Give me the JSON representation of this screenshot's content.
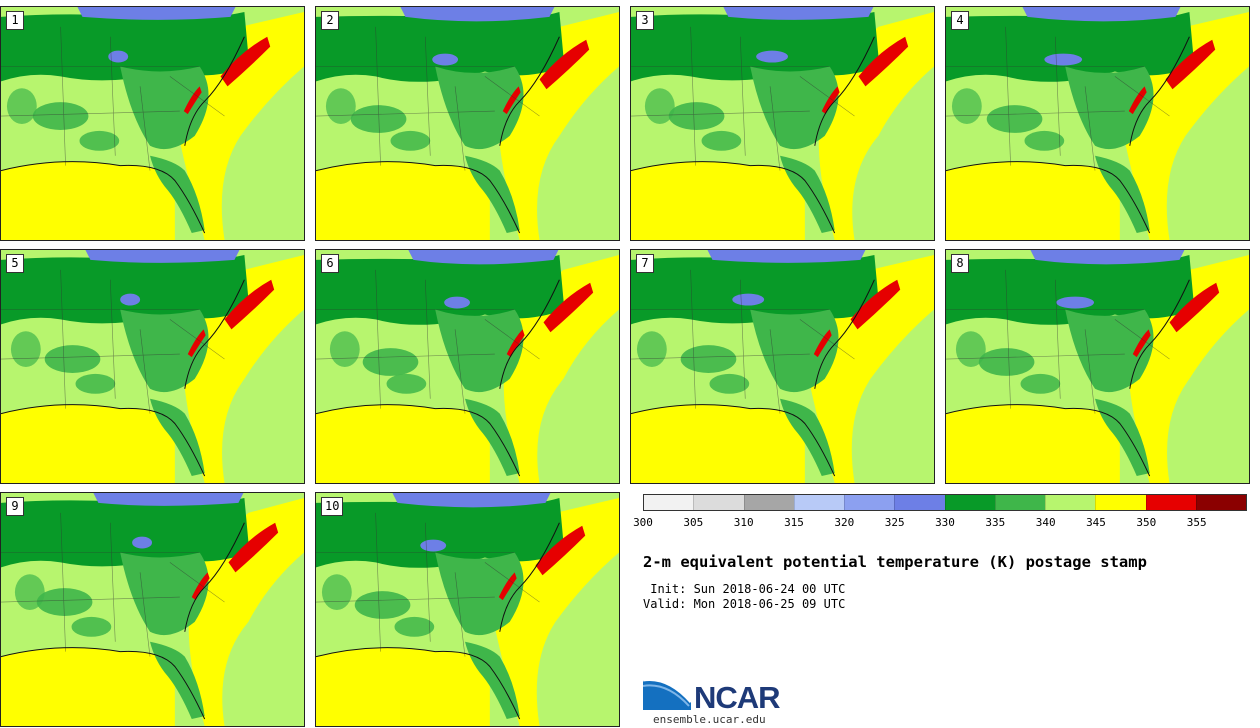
{
  "panels": [
    {
      "label": "1",
      "variant": 0
    },
    {
      "label": "2",
      "variant": 1
    },
    {
      "label": "3",
      "variant": 2
    },
    {
      "label": "4",
      "variant": 3
    },
    {
      "label": "5",
      "variant": 4
    },
    {
      "label": "6",
      "variant": 5
    },
    {
      "label": "7",
      "variant": 6
    },
    {
      "label": "8",
      "variant": 7
    },
    {
      "label": "9",
      "variant": 8
    },
    {
      "label": "10",
      "variant": 9
    }
  ],
  "colorbar": {
    "colors": [
      "#f2f2f2",
      "#dcdcdc",
      "#a6a6a6",
      "#b8caf7",
      "#8ca0f0",
      "#6d7fe6",
      "#089a28",
      "#3fb64a",
      "#b7f56e",
      "#ffff00",
      "#e60000",
      "#8b0000"
    ],
    "ticks": [
      "300",
      "305",
      "310",
      "315",
      "320",
      "325",
      "330",
      "335",
      "340",
      "345",
      "350",
      "355"
    ]
  },
  "title": "2-m equivalent potential temperature (K) postage stamp",
  "init": " Init: Sun 2018-06-24 00 UTC",
  "valid": "Valid: Mon 2018-06-25 09 UTC",
  "logo": {
    "text": "NCAR",
    "site": "ensemble.ucar.edu"
  },
  "map_colors": {
    "purple": "#6d7fe6",
    "dark_green": "#089a28",
    "green": "#3fb64a",
    "light_green": "#b7f56e",
    "yellow": "#ffff00",
    "red": "#e60000"
  }
}
